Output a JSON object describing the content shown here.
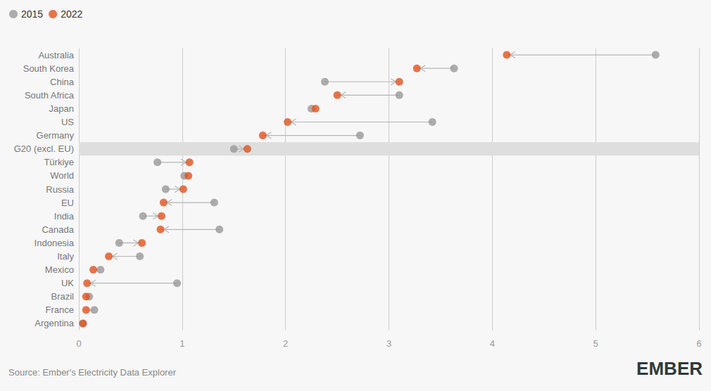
{
  "chart_data": {
    "type": "dumbbell",
    "categories": [
      "Australia",
      "South Korea",
      "China",
      "South Africa",
      "Japan",
      "US",
      "Germany",
      "G20 (excl. EU)",
      "Türkiye",
      "World",
      "Russia",
      "EU",
      "India",
      "Canada",
      "Indonesia",
      "Italy",
      "Mexico",
      "UK",
      "Brazil",
      "France",
      "Argentina"
    ],
    "series": [
      {
        "name": "2015",
        "color": "#999999",
        "values": [
          5.58,
          3.63,
          2.38,
          3.1,
          2.25,
          3.42,
          2.72,
          1.5,
          0.76,
          1.02,
          0.84,
          1.31,
          0.62,
          1.36,
          0.39,
          0.59,
          0.21,
          0.95,
          0.1,
          0.15,
          0.04
        ]
      },
      {
        "name": "2022",
        "color": "#e0531e",
        "values": [
          4.14,
          3.27,
          3.1,
          2.5,
          2.29,
          2.02,
          1.78,
          1.63,
          1.07,
          1.06,
          1.01,
          0.82,
          0.8,
          0.79,
          0.61,
          0.29,
          0.14,
          0.08,
          0.07,
          0.07,
          0.04
        ]
      }
    ],
    "highlight": "G20 (excl. EU)",
    "xlim": [
      0,
      6
    ],
    "xticks": [
      0,
      1,
      2,
      3,
      4,
      5,
      6
    ],
    "grid": true,
    "legend": "top-left",
    "source": "Source: Ember's Electricity Data Explorer",
    "logo": "EMBER"
  }
}
